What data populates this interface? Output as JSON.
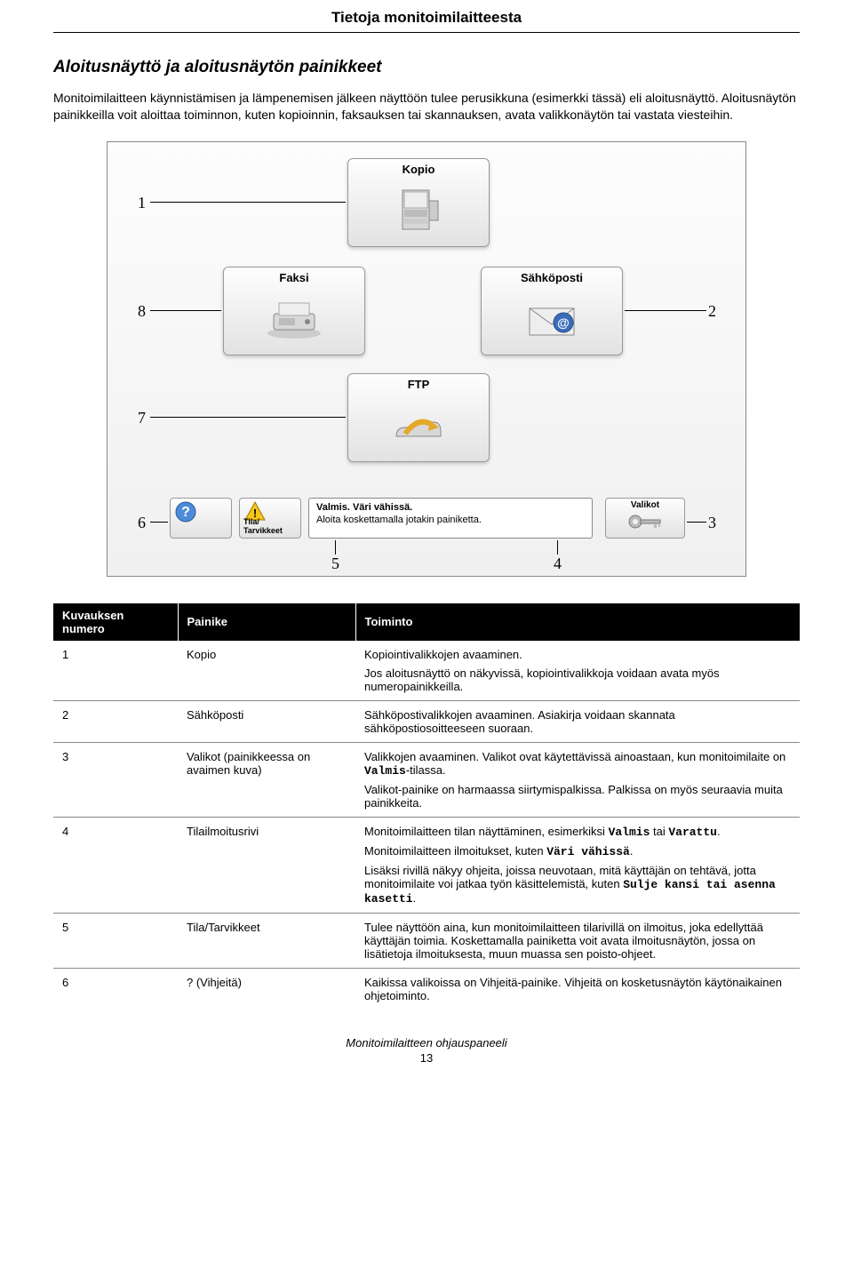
{
  "header": {
    "title": "Tietoja monitoimilaitteesta"
  },
  "section": {
    "title": "Aloitusnäyttö ja aloitusnäytön painikkeet",
    "p1": "Monitoimilaitteen käynnistämisen ja lämpenemisen jälkeen näyttöön tulee perusikkuna (esimerkki tässä) eli aloitusnäyttö. Aloitusnäytön painikkeilla voit aloittaa toiminnon, kuten kopioinnin, faksauksen tai skannauksen, avata valikkonäytön tai vastata viesteihin."
  },
  "diagram": {
    "buttons": {
      "copy": "Kopio",
      "fax": "Faksi",
      "email": "Sähköposti",
      "ftp": "FTP"
    },
    "statusButtons": {
      "help": "?",
      "supplies": "Tila/\nTarvikkeet"
    },
    "statusBar": {
      "l1": "Valmis. Väri vähissä.",
      "l2": "Aloita koskettamalla jotakin painiketta."
    },
    "menuBtn": "Valikot",
    "callouts": {
      "n1": "1",
      "n2": "2",
      "n3": "3",
      "n4": "4",
      "n5": "5",
      "n6": "6",
      "n7": "7",
      "n8": "8"
    },
    "colors": {
      "panel_bg_top": "#fdfdfd",
      "panel_bg_bot": "#f0f0f0",
      "btn_border": "#999"
    }
  },
  "table": {
    "headers": {
      "c1": "Kuvauksen numero",
      "c2": "Painike",
      "c3": "Toiminto"
    },
    "rows": [
      {
        "n": "1",
        "btn": "Kopio",
        "fn": [
          "Kopiointivalikkojen avaaminen.",
          "Jos aloitusnäyttö on näkyvissä, kopiointivalikkoja voidaan avata myös numeropainikkeilla."
        ]
      },
      {
        "n": "2",
        "btn": "Sähköposti",
        "fn": [
          "Sähköpostivalikkojen avaaminen. Asiakirja voidaan skannata sähköpostiosoitteeseen suoraan."
        ]
      },
      {
        "n": "3",
        "btn": "Valikot (painikkeessa on avaimen kuva)",
        "fn_rich": [
          {
            "pre": "Valikkojen avaaminen. Valikot ovat käytettävissä ainoastaan, kun monitoimilaite on ",
            "mono": "Valmis",
            "post": "-tilassa."
          },
          {
            "pre": "Valikot-painike on harmaassa siirtymispalkissa. Palkissa on myös seuraavia muita painikkeita."
          }
        ]
      },
      {
        "n": "4",
        "btn": "Tilailmoitusrivi",
        "fn_rich": [
          {
            "pre": "Monitoimilaitteen tilan näyttäminen, esimerkiksi ",
            "mono": "Valmis",
            "mid": " tai ",
            "mono2": "Varattu",
            "post": "."
          },
          {
            "pre": "Monitoimilaitteen ilmoitukset, kuten ",
            "mono": "Väri vähissä",
            "post": "."
          },
          {
            "pre": "Lisäksi rivillä näkyy ohjeita, joissa neuvotaan, mitä käyttäjän on tehtävä, jotta monitoimilaite voi jatkaa työn käsittelemistä, kuten ",
            "mono": "Sulje kansi tai asenna kasetti",
            "post": "."
          }
        ]
      },
      {
        "n": "5",
        "btn": "Tila/Tarvikkeet",
        "fn": [
          "Tulee näyttöön aina, kun monitoimilaitteen tilarivillä on ilmoitus, joka edellyttää käyttäjän toimia. Koskettamalla painiketta voit avata ilmoitusnäytön, jossa on lisätietoja ilmoituksesta, muun muassa sen poisto-ohjeet."
        ]
      },
      {
        "n": "6",
        "btn": "? (Vihjeitä)",
        "fn": [
          "Kaikissa valikoissa on Vihjeitä-painike. Vihjeitä on kosketusnäytön käytönaikainen ohjetoiminto."
        ]
      }
    ]
  },
  "footer": {
    "text": "Monitoimilaitteen ohjauspaneeli",
    "page": "13"
  }
}
